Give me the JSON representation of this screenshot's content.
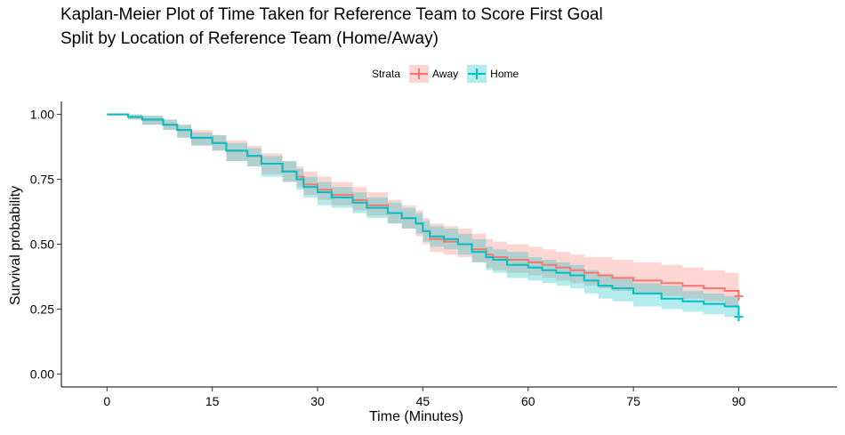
{
  "chart_data": {
    "type": "line",
    "title": "Kaplan-Meier Plot of Time Taken for Reference Team to Score First Goal",
    "subtitle": "Split by Location of Reference Team (Home/Away)",
    "xlabel": "Time (Minutes)",
    "ylabel": "Survival probability",
    "xlim": [
      -6.5,
      104
    ],
    "ylim": [
      -0.05,
      1.05
    ],
    "x_ticks": [
      "0",
      "15",
      "30",
      "45",
      "60",
      "75",
      "90"
    ],
    "y_ticks": [
      "0.00",
      "0.25",
      "0.50",
      "0.75",
      "1.00"
    ],
    "legend_title": "Strata",
    "legend_position": "top",
    "grid": false,
    "series": [
      {
        "name": "Away",
        "color": "#F8766D",
        "band_color": "#F8766D",
        "points": [
          [
            0,
            1.0
          ],
          [
            3,
            0.99
          ],
          [
            5,
            0.98
          ],
          [
            8,
            0.96
          ],
          [
            10,
            0.94
          ],
          [
            12,
            0.91
          ],
          [
            15,
            0.89
          ],
          [
            17,
            0.86
          ],
          [
            20,
            0.84
          ],
          [
            22,
            0.81
          ],
          [
            25,
            0.78
          ],
          [
            27,
            0.76
          ],
          [
            28,
            0.73
          ],
          [
            30,
            0.71
          ],
          [
            32,
            0.69
          ],
          [
            35,
            0.67
          ],
          [
            37,
            0.65
          ],
          [
            40,
            0.62
          ],
          [
            42,
            0.6
          ],
          [
            44,
            0.58
          ],
          [
            45,
            0.55
          ],
          [
            46,
            0.52
          ],
          [
            48,
            0.51
          ],
          [
            50,
            0.5
          ],
          [
            52,
            0.48
          ],
          [
            54,
            0.46
          ],
          [
            55,
            0.45
          ],
          [
            57,
            0.44
          ],
          [
            60,
            0.43
          ],
          [
            62,
            0.42
          ],
          [
            64,
            0.41
          ],
          [
            66,
            0.4
          ],
          [
            68,
            0.39
          ],
          [
            70,
            0.38
          ],
          [
            72,
            0.37
          ],
          [
            75,
            0.36
          ],
          [
            79,
            0.35
          ],
          [
            82,
            0.34
          ],
          [
            85,
            0.33
          ],
          [
            88,
            0.32
          ],
          [
            90,
            0.3
          ]
        ],
        "ci_upper": [
          [
            0,
            1.0
          ],
          [
            3,
            1.0
          ],
          [
            5,
            0.995
          ],
          [
            8,
            0.98
          ],
          [
            10,
            0.96
          ],
          [
            12,
            0.94
          ],
          [
            15,
            0.92
          ],
          [
            17,
            0.9
          ],
          [
            20,
            0.88
          ],
          [
            22,
            0.85
          ],
          [
            25,
            0.82
          ],
          [
            27,
            0.8
          ],
          [
            28,
            0.78
          ],
          [
            30,
            0.76
          ],
          [
            32,
            0.74
          ],
          [
            35,
            0.72
          ],
          [
            37,
            0.7
          ],
          [
            40,
            0.67
          ],
          [
            42,
            0.65
          ],
          [
            44,
            0.63
          ],
          [
            45,
            0.6
          ],
          [
            46,
            0.58
          ],
          [
            48,
            0.57
          ],
          [
            50,
            0.56
          ],
          [
            52,
            0.54
          ],
          [
            54,
            0.52
          ],
          [
            55,
            0.51
          ],
          [
            57,
            0.5
          ],
          [
            60,
            0.49
          ],
          [
            62,
            0.48
          ],
          [
            64,
            0.47
          ],
          [
            66,
            0.46
          ],
          [
            68,
            0.45
          ],
          [
            70,
            0.45
          ],
          [
            72,
            0.44
          ],
          [
            75,
            0.43
          ],
          [
            79,
            0.42
          ],
          [
            82,
            0.41
          ],
          [
            85,
            0.4
          ],
          [
            88,
            0.39
          ],
          [
            90,
            0.39
          ]
        ],
        "ci_lower": [
          [
            0,
            1.0
          ],
          [
            3,
            0.98
          ],
          [
            5,
            0.96
          ],
          [
            8,
            0.94
          ],
          [
            10,
            0.91
          ],
          [
            12,
            0.88
          ],
          [
            15,
            0.86
          ],
          [
            17,
            0.82
          ],
          [
            20,
            0.8
          ],
          [
            22,
            0.77
          ],
          [
            25,
            0.74
          ],
          [
            27,
            0.72
          ],
          [
            28,
            0.69
          ],
          [
            30,
            0.67
          ],
          [
            32,
            0.65
          ],
          [
            35,
            0.63
          ],
          [
            37,
            0.61
          ],
          [
            40,
            0.58
          ],
          [
            42,
            0.56
          ],
          [
            44,
            0.53
          ],
          [
            45,
            0.5
          ],
          [
            46,
            0.47
          ],
          [
            48,
            0.46
          ],
          [
            50,
            0.45
          ],
          [
            52,
            0.43
          ],
          [
            54,
            0.41
          ],
          [
            55,
            0.4
          ],
          [
            57,
            0.39
          ],
          [
            60,
            0.38
          ],
          [
            62,
            0.37
          ],
          [
            64,
            0.36
          ],
          [
            66,
            0.35
          ],
          [
            68,
            0.34
          ],
          [
            70,
            0.33
          ],
          [
            72,
            0.32
          ],
          [
            75,
            0.31
          ],
          [
            79,
            0.3
          ],
          [
            82,
            0.29
          ],
          [
            85,
            0.28
          ],
          [
            88,
            0.26
          ],
          [
            90,
            0.25
          ]
        ],
        "censor": [
          [
            90,
            0.3
          ]
        ]
      },
      {
        "name": "Home",
        "color": "#00BFC4",
        "band_color": "#00BFC4",
        "points": [
          [
            0,
            1.0
          ],
          [
            3,
            0.99
          ],
          [
            5,
            0.98
          ],
          [
            8,
            0.96
          ],
          [
            10,
            0.94
          ],
          [
            12,
            0.91
          ],
          [
            15,
            0.89
          ],
          [
            17,
            0.86
          ],
          [
            20,
            0.84
          ],
          [
            22,
            0.81
          ],
          [
            25,
            0.78
          ],
          [
            27,
            0.75
          ],
          [
            28,
            0.72
          ],
          [
            30,
            0.7
          ],
          [
            32,
            0.68
          ],
          [
            35,
            0.66
          ],
          [
            37,
            0.64
          ],
          [
            40,
            0.62
          ],
          [
            42,
            0.6
          ],
          [
            44,
            0.58
          ],
          [
            45,
            0.55
          ],
          [
            46,
            0.53
          ],
          [
            48,
            0.52
          ],
          [
            50,
            0.5
          ],
          [
            52,
            0.47
          ],
          [
            54,
            0.45
          ],
          [
            55,
            0.44
          ],
          [
            57,
            0.42
          ],
          [
            60,
            0.41
          ],
          [
            62,
            0.4
          ],
          [
            64,
            0.39
          ],
          [
            66,
            0.38
          ],
          [
            68,
            0.36
          ],
          [
            70,
            0.34
          ],
          [
            72,
            0.33
          ],
          [
            75,
            0.31
          ],
          [
            79,
            0.29
          ],
          [
            82,
            0.28
          ],
          [
            85,
            0.27
          ],
          [
            88,
            0.26
          ],
          [
            90,
            0.22
          ]
        ],
        "ci_upper": [
          [
            0,
            1.0
          ],
          [
            3,
            1.0
          ],
          [
            5,
            0.995
          ],
          [
            8,
            0.98
          ],
          [
            10,
            0.96
          ],
          [
            12,
            0.93
          ],
          [
            15,
            0.92
          ],
          [
            17,
            0.89
          ],
          [
            20,
            0.87
          ],
          [
            22,
            0.84
          ],
          [
            25,
            0.82
          ],
          [
            27,
            0.79
          ],
          [
            28,
            0.76
          ],
          [
            30,
            0.74
          ],
          [
            32,
            0.72
          ],
          [
            35,
            0.7
          ],
          [
            37,
            0.68
          ],
          [
            40,
            0.66
          ],
          [
            42,
            0.64
          ],
          [
            44,
            0.62
          ],
          [
            45,
            0.59
          ],
          [
            46,
            0.57
          ],
          [
            48,
            0.56
          ],
          [
            50,
            0.54
          ],
          [
            52,
            0.52
          ],
          [
            54,
            0.49
          ],
          [
            55,
            0.48
          ],
          [
            57,
            0.47
          ],
          [
            60,
            0.45
          ],
          [
            62,
            0.44
          ],
          [
            64,
            0.43
          ],
          [
            66,
            0.42
          ],
          [
            68,
            0.4
          ],
          [
            70,
            0.38
          ],
          [
            72,
            0.37
          ],
          [
            75,
            0.35
          ],
          [
            79,
            0.34
          ],
          [
            82,
            0.32
          ],
          [
            85,
            0.31
          ],
          [
            88,
            0.3
          ],
          [
            90,
            0.27
          ]
        ],
        "ci_lower": [
          [
            0,
            1.0
          ],
          [
            3,
            0.98
          ],
          [
            5,
            0.96
          ],
          [
            8,
            0.94
          ],
          [
            10,
            0.91
          ],
          [
            12,
            0.88
          ],
          [
            15,
            0.86
          ],
          [
            17,
            0.82
          ],
          [
            20,
            0.8
          ],
          [
            22,
            0.76
          ],
          [
            25,
            0.74
          ],
          [
            27,
            0.71
          ],
          [
            28,
            0.68
          ],
          [
            30,
            0.65
          ],
          [
            32,
            0.64
          ],
          [
            35,
            0.62
          ],
          [
            37,
            0.6
          ],
          [
            40,
            0.58
          ],
          [
            42,
            0.56
          ],
          [
            44,
            0.54
          ],
          [
            45,
            0.51
          ],
          [
            46,
            0.49
          ],
          [
            48,
            0.48
          ],
          [
            50,
            0.46
          ],
          [
            52,
            0.43
          ],
          [
            54,
            0.4
          ],
          [
            55,
            0.39
          ],
          [
            57,
            0.37
          ],
          [
            60,
            0.36
          ],
          [
            62,
            0.35
          ],
          [
            64,
            0.34
          ],
          [
            66,
            0.33
          ],
          [
            68,
            0.31
          ],
          [
            70,
            0.29
          ],
          [
            72,
            0.28
          ],
          [
            75,
            0.26
          ],
          [
            79,
            0.25
          ],
          [
            82,
            0.24
          ],
          [
            85,
            0.23
          ],
          [
            88,
            0.22
          ],
          [
            90,
            0.2
          ]
        ],
        "censor": [
          [
            90,
            0.22
          ]
        ]
      }
    ]
  }
}
